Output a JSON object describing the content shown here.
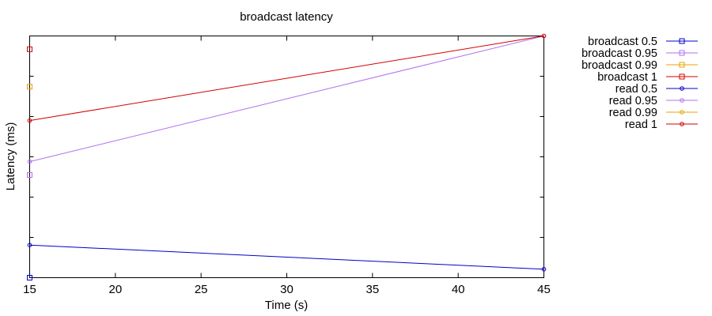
{
  "chart_data": {
    "type": "line",
    "title": "broadcast latency",
    "xlabel": "Time (s)",
    "ylabel": "Latency (ms)",
    "xlim": [
      15,
      45
    ],
    "ylim": [
      0,
      1
    ],
    "x_ticks": [
      15,
      20,
      25,
      30,
      35,
      40,
      45
    ],
    "y_tick_labels_shown": false,
    "legend_position": "right",
    "series": [
      {
        "name": "broadcast 0.5",
        "color": "#0000cc",
        "marker": "square",
        "x": [
          15
        ],
        "y": [
          0.0
        ]
      },
      {
        "name": "broadcast 0.95",
        "color": "#b070f0",
        "marker": "square",
        "x": [
          15
        ],
        "y": [
          0.425
        ]
      },
      {
        "name": "broadcast 0.99",
        "color": "#e8a000",
        "marker": "square",
        "x": [
          15
        ],
        "y": [
          0.79
        ]
      },
      {
        "name": "broadcast 1",
        "color": "#d40000",
        "marker": "square",
        "x": [
          15
        ],
        "y": [
          0.945
        ]
      },
      {
        "name": "read 0.5",
        "color": "#0000cc",
        "marker": "circle",
        "x": [
          15,
          45
        ],
        "y": [
          0.135,
          0.035
        ]
      },
      {
        "name": "read 0.95",
        "color": "#b070f0",
        "marker": "circle",
        "x": [
          15,
          45
        ],
        "y": [
          0.48,
          1.0
        ]
      },
      {
        "name": "read 0.99",
        "color": "#e8a000",
        "marker": "circle",
        "x": [],
        "y": []
      },
      {
        "name": "read 1",
        "color": "#d40000",
        "marker": "circle",
        "x": [
          15,
          45
        ],
        "y": [
          0.65,
          1.0
        ]
      }
    ]
  }
}
